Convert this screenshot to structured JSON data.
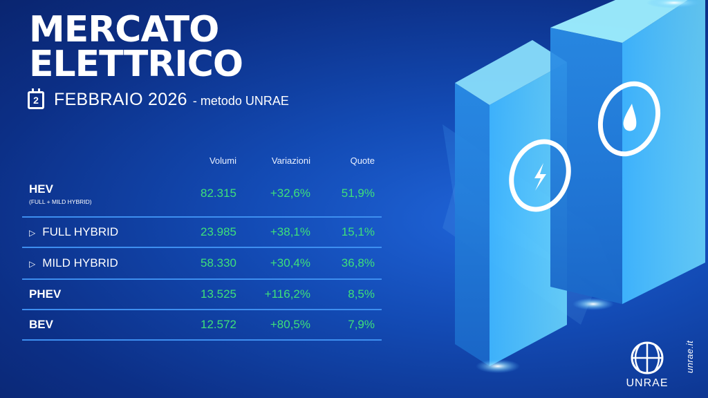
{
  "title": "MERCATO\nELETTRICO",
  "subtitle": {
    "calendar_day": "2",
    "month": "FEBBRAIO 2026",
    "method": "- metodo UNRAE"
  },
  "table": {
    "headers": {
      "volumi": "Volumi",
      "variazioni": "Variazioni",
      "quote": "Quote"
    },
    "rows": [
      {
        "label": "HEV",
        "sublabel": "(FULL + MILD HYBRID)",
        "volumi": "82.315",
        "variazioni": "+32,6%",
        "quote": "51,9%"
      },
      {
        "label": "FULL HYBRID",
        "volumi": "23.985",
        "variazioni": "+38,1%",
        "quote": "15,1%"
      },
      {
        "label": "MILD HYBRID",
        "volumi": "58.330",
        "variazioni": "+30,4%",
        "quote": "36,8%"
      },
      {
        "label": "PHEV",
        "volumi": "13.525",
        "variazioni": "+116,2%",
        "quote": "8,5%"
      },
      {
        "label": "BEV",
        "volumi": "12.572",
        "variazioni": "+80,5%",
        "quote": "7,9%"
      }
    ]
  },
  "icons": {
    "bullet": "triangle-right-icon",
    "calendar": "calendar-icon",
    "lightning": "lightning-icon",
    "drop": "water-drop-icon"
  },
  "colors": {
    "background": "#134bb5",
    "value_green": "#3ee07a",
    "divider": "#3e8ff0",
    "pillar": "#5fd0ff"
  },
  "logo": {
    "text": "UNRAE",
    "url": "unrae.it"
  }
}
